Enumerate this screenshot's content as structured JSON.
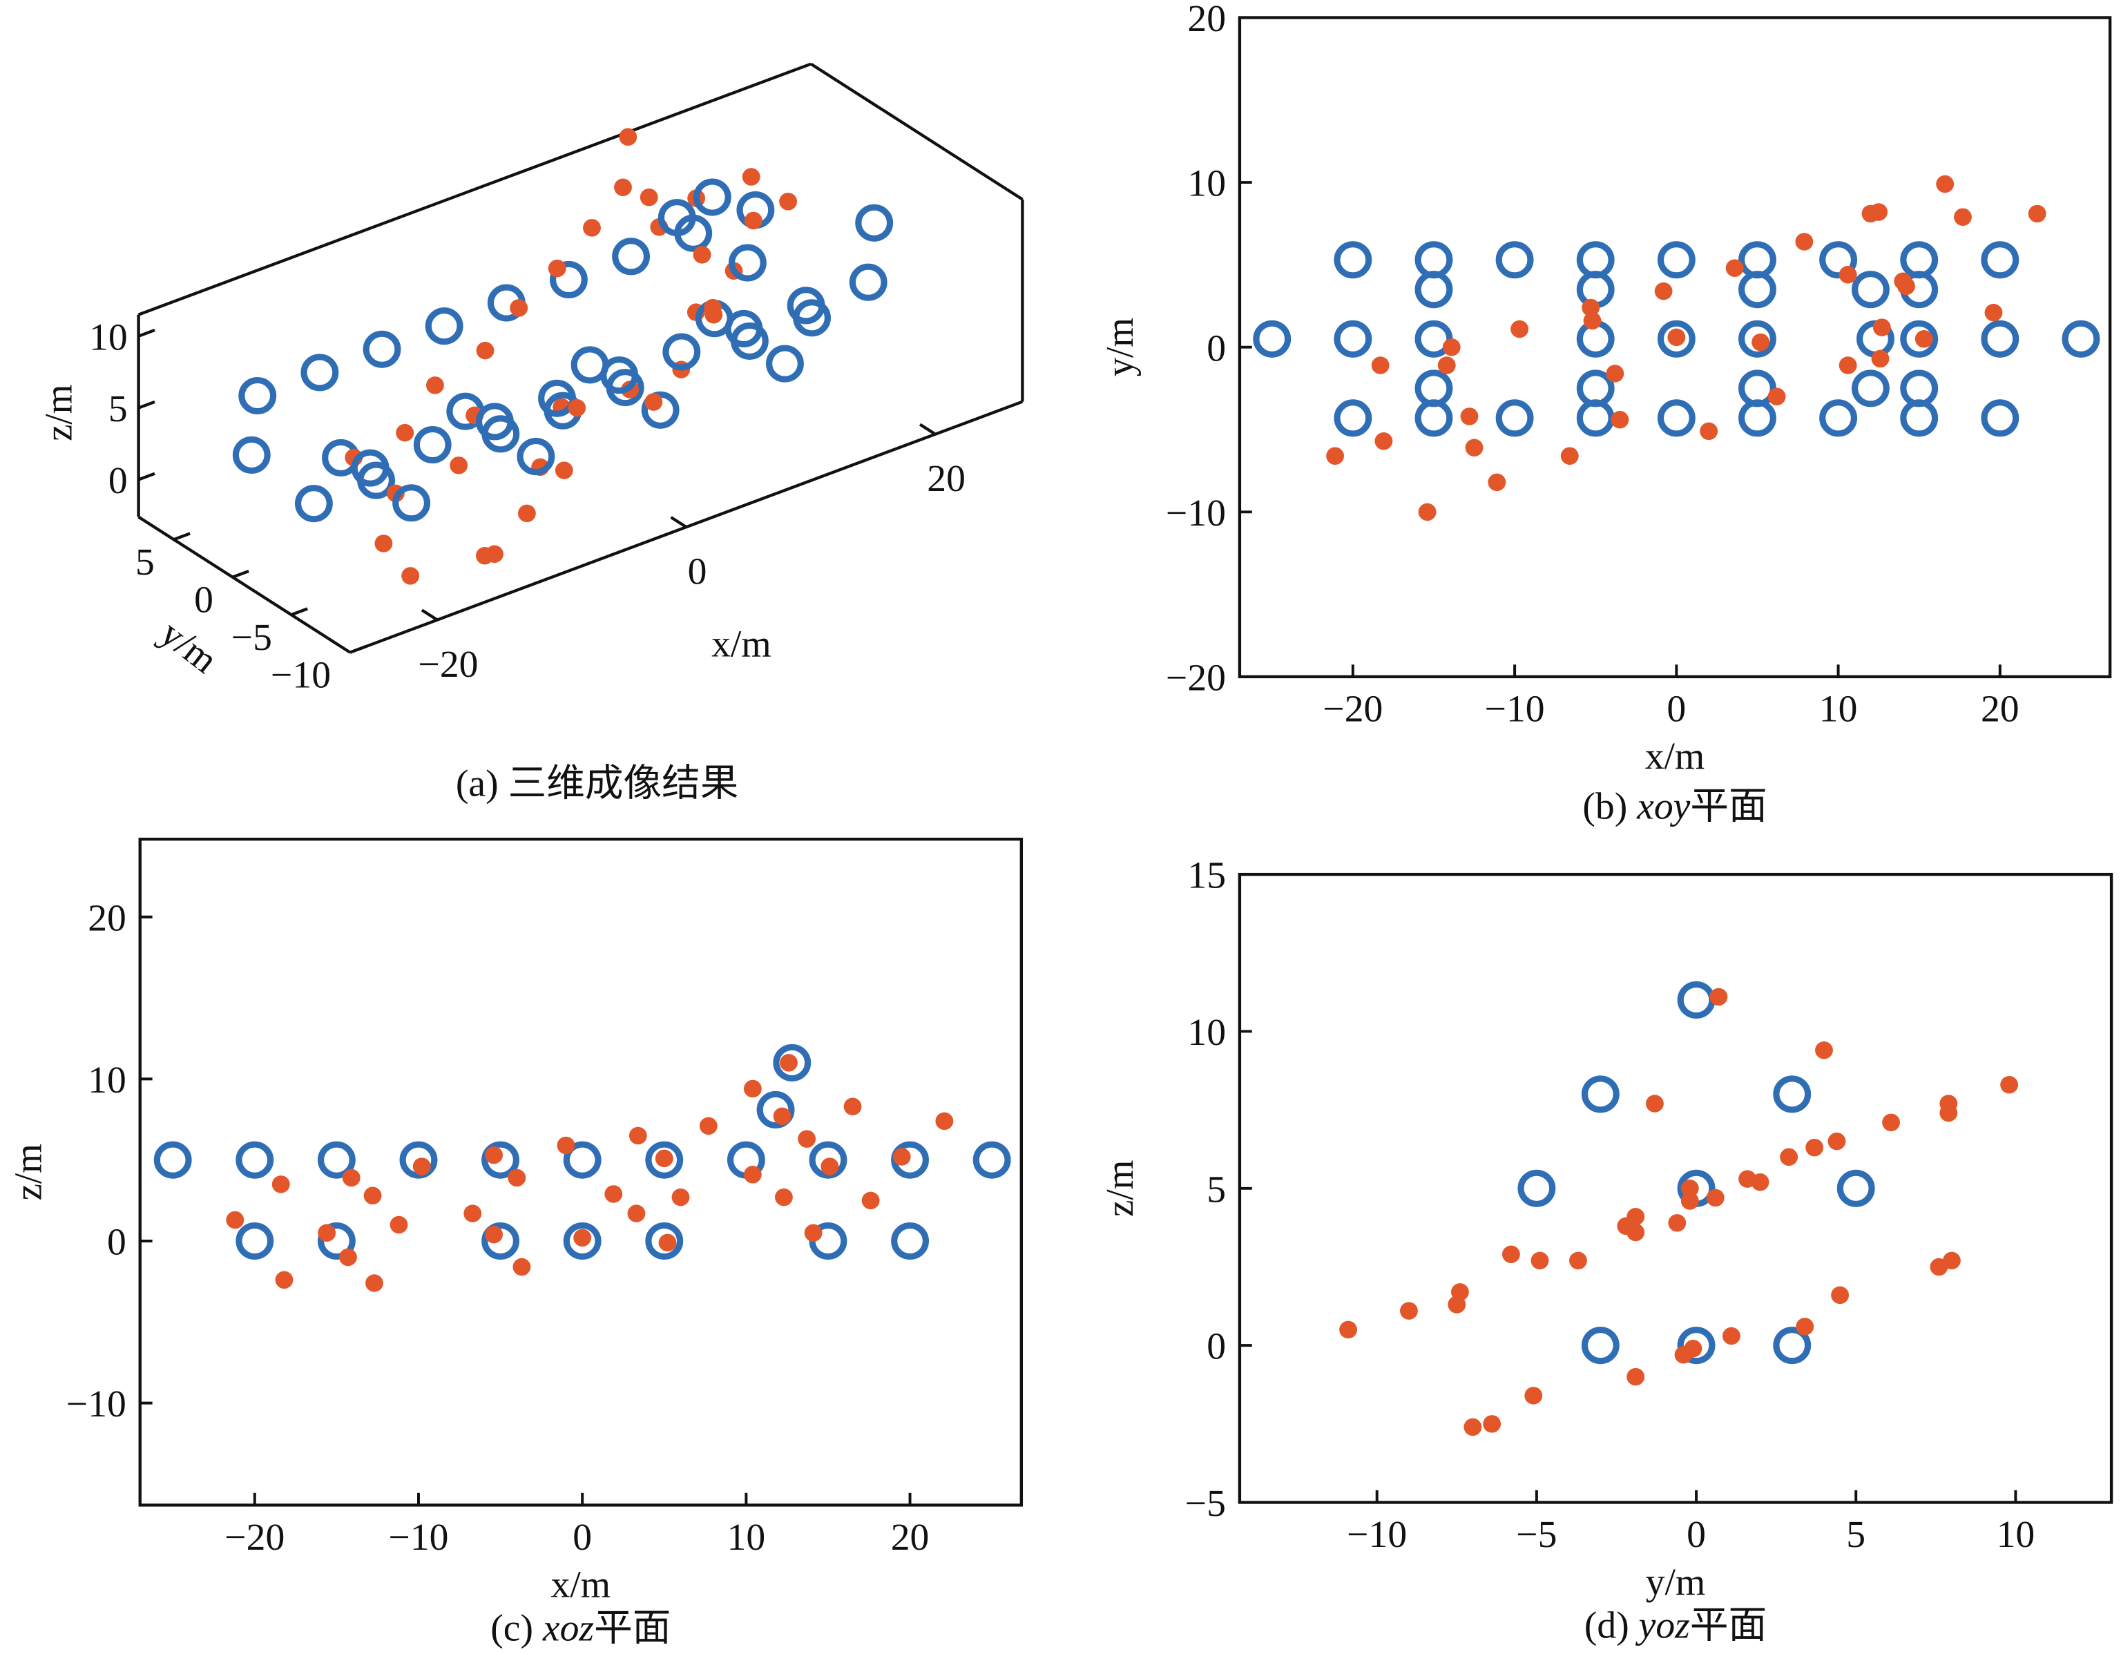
{
  "colors": {
    "target": "#2F6DB5",
    "image": "#E3562A",
    "axis": "#111111"
  },
  "chart_data": [
    {
      "panel": "a",
      "type": "scatter3d",
      "caption": {
        "prefix": "(a) ",
        "italic": "",
        "suffix": "三维成像结果"
      },
      "xlabel": "x/m",
      "ylabel": "y/m",
      "zlabel": "z/m",
      "xticks": [
        -20,
        0,
        20
      ],
      "yticks": [
        -10,
        -5,
        0,
        5
      ],
      "zticks": [
        0,
        5,
        10
      ],
      "xlim": [
        -27,
        27
      ],
      "ylim": [
        -10,
        8
      ],
      "zlim": [
        -2.6,
        11.5
      ],
      "targets": [
        [
          -20,
          5.3,
          5
        ],
        [
          -15,
          5.3,
          5
        ],
        [
          -10,
          5.3,
          5
        ],
        [
          -5,
          5.3,
          5
        ],
        [
          0,
          5.3,
          5
        ],
        [
          5,
          5.3,
          5
        ],
        [
          10,
          5.3,
          5
        ],
        [
          15,
          5.3,
          5
        ],
        [
          20,
          5.3,
          5
        ],
        [
          -20,
          -4.3,
          5
        ],
        [
          -15,
          -4.3,
          5
        ],
        [
          -10,
          -4.3,
          5
        ],
        [
          -5,
          -4.3,
          5
        ],
        [
          0,
          -4.3,
          5
        ],
        [
          5,
          -4.3,
          5
        ],
        [
          10,
          -4.3,
          5
        ],
        [
          15,
          -4.3,
          5
        ],
        [
          20,
          -4.3,
          5
        ],
        [
          -25,
          0.5,
          5
        ],
        [
          25,
          0.5,
          5
        ],
        [
          -20,
          0.5,
          0
        ],
        [
          -15,
          0.5,
          0
        ],
        [
          -5,
          0.5,
          0
        ],
        [
          0,
          0.5,
          0
        ],
        [
          5,
          0.5,
          0
        ],
        [
          15,
          0.5,
          0
        ],
        [
          20,
          0.5,
          0
        ],
        [
          12,
          0.5,
          11
        ],
        [
          -15,
          3.5,
          0
        ],
        [
          -5,
          3.5,
          0
        ],
        [
          5,
          3.5,
          0
        ],
        [
          15,
          3.5,
          0
        ],
        [
          12,
          3.5,
          8
        ],
        [
          -15,
          -2.5,
          0
        ],
        [
          -5,
          -2.5,
          0
        ],
        [
          5,
          -2.5,
          0
        ],
        [
          15,
          -2.5,
          0
        ],
        [
          12,
          -2.5,
          8
        ]
      ],
      "imaging_source": "merged from xoy and xoz panels"
    },
    {
      "panel": "b",
      "type": "scatter",
      "caption": {
        "prefix": "(b) ",
        "italic": "xoy",
        "suffix": "平面"
      },
      "xlabel": "x/m",
      "ylabel": "y/m",
      "xlim": [
        -27,
        26.8
      ],
      "ylim": [
        -20,
        20
      ],
      "xticks": [
        -20,
        -10,
        0,
        10,
        20
      ],
      "yticks": [
        -20,
        -10,
        0,
        10,
        20
      ],
      "targets": [
        [
          -20,
          5.3
        ],
        [
          -15,
          5.3
        ],
        [
          -10,
          5.3
        ],
        [
          -5,
          5.3
        ],
        [
          0,
          5.3
        ],
        [
          5,
          5.3
        ],
        [
          10,
          5.3
        ],
        [
          15,
          5.3
        ],
        [
          20,
          5.3
        ],
        [
          -15,
          3.5
        ],
        [
          -5,
          3.5
        ],
        [
          5,
          3.5
        ],
        [
          12,
          3.5
        ],
        [
          15,
          3.5
        ],
        [
          -25,
          0.5
        ],
        [
          -20,
          0.5
        ],
        [
          -15,
          0.5
        ],
        [
          -5,
          0.5
        ],
        [
          0,
          0.5
        ],
        [
          5,
          0.5
        ],
        [
          12.3,
          0.5
        ],
        [
          15,
          0.5
        ],
        [
          20,
          0.5
        ],
        [
          25,
          0.5
        ],
        [
          -15,
          -2.5
        ],
        [
          -5,
          -2.5
        ],
        [
          5,
          -2.5
        ],
        [
          12,
          -2.5
        ],
        [
          15,
          -2.5
        ],
        [
          -20,
          -4.3
        ],
        [
          -15,
          -4.3
        ],
        [
          -10,
          -4.3
        ],
        [
          -5,
          -4.3
        ],
        [
          0,
          -4.3
        ],
        [
          5,
          -4.3
        ],
        [
          10,
          -4.3
        ],
        [
          15,
          -4.3
        ],
        [
          20,
          -4.3
        ]
      ],
      "imaging": [
        [
          -21.1,
          -6.6
        ],
        [
          -18.3,
          -1.1
        ],
        [
          -18.1,
          -5.7
        ],
        [
          -15.4,
          -10
        ],
        [
          -14.2,
          -1.1
        ],
        [
          -13.9,
          0
        ],
        [
          -12.8,
          -4.2
        ],
        [
          -12.5,
          -6.1
        ],
        [
          -11.1,
          -8.2
        ],
        [
          -9.7,
          1.1
        ],
        [
          -6.6,
          -6.6
        ],
        [
          -5.3,
          2.4
        ],
        [
          -5.2,
          1.6
        ],
        [
          -3.8,
          -1.6
        ],
        [
          -3.5,
          -4.4
        ],
        [
          -0.8,
          3.4
        ],
        [
          0,
          0.6
        ],
        [
          2,
          -5.1
        ],
        [
          3.6,
          4.8
        ],
        [
          5.2,
          0.3
        ],
        [
          6.2,
          -3
        ],
        [
          7.9,
          6.4
        ],
        [
          10.6,
          4.4
        ],
        [
          10.6,
          -1.1
        ],
        [
          12,
          8.1
        ],
        [
          12.5,
          8.2
        ],
        [
          12.7,
          1.2
        ],
        [
          12.6,
          -0.7
        ],
        [
          14,
          4
        ],
        [
          14.2,
          3.7
        ],
        [
          15.3,
          0.5
        ],
        [
          16.6,
          9.9
        ],
        [
          17.7,
          7.9
        ],
        [
          19.6,
          2.1
        ],
        [
          22.3,
          8.1
        ]
      ]
    },
    {
      "panel": "c",
      "type": "scatter",
      "caption": {
        "prefix": "(c) ",
        "italic": "xoz",
        "suffix": "平面"
      },
      "xlabel": "x/m",
      "ylabel": "z/m",
      "xlim": [
        -27,
        26.8
      ],
      "ylim": [
        -16.3,
        24.8
      ],
      "xticks": [
        -20,
        -10,
        0,
        10,
        20
      ],
      "yticks": [
        -10,
        0,
        10,
        20
      ],
      "targets": [
        [
          -25,
          5
        ],
        [
          -20,
          5
        ],
        [
          -15,
          5
        ],
        [
          -10,
          5
        ],
        [
          -5,
          5
        ],
        [
          0,
          5
        ],
        [
          5,
          5
        ],
        [
          10,
          5
        ],
        [
          15,
          5
        ],
        [
          20,
          5
        ],
        [
          25,
          5
        ],
        [
          -20,
          0
        ],
        [
          -15,
          0
        ],
        [
          -5,
          0
        ],
        [
          0,
          0
        ],
        [
          5,
          0
        ],
        [
          15,
          0
        ],
        [
          20,
          0
        ],
        [
          11.8,
          8.1
        ],
        [
          12.8,
          11
        ]
      ],
      "imaging": [
        [
          -21.2,
          1.3
        ],
        [
          -18.4,
          3.5
        ],
        [
          -18.2,
          -2.4
        ],
        [
          -15.6,
          0.5
        ],
        [
          -14.3,
          -1
        ],
        [
          -14.1,
          3.9
        ],
        [
          -12.8,
          2.8
        ],
        [
          -12.7,
          -2.6
        ],
        [
          -11.2,
          1
        ],
        [
          -9.8,
          4.6
        ],
        [
          -6.7,
          1.7
        ],
        [
          -5.4,
          0.4
        ],
        [
          -5.4,
          5.3
        ],
        [
          -4,
          3.9
        ],
        [
          -3.7,
          -1.6
        ],
        [
          -1,
          5.9
        ],
        [
          0,
          0.2
        ],
        [
          1.9,
          2.9
        ],
        [
          3.4,
          6.5
        ],
        [
          3.3,
          1.7
        ],
        [
          5,
          5.1
        ],
        [
          5.2,
          -0.1
        ],
        [
          6,
          2.7
        ],
        [
          7.7,
          7.1
        ],
        [
          10.4,
          9.4
        ],
        [
          10.4,
          4.1
        ],
        [
          12.2,
          7.7
        ],
        [
          12.6,
          11
        ],
        [
          12.3,
          2.7
        ],
        [
          13.7,
          6.3
        ],
        [
          14.1,
          0.5
        ],
        [
          15.1,
          4.6
        ],
        [
          16.5,
          8.3
        ],
        [
          17.6,
          2.5
        ],
        [
          19.5,
          5.2
        ],
        [
          22.1,
          7.4
        ]
      ]
    },
    {
      "panel": "d",
      "type": "scatter",
      "caption": {
        "prefix": "(d) ",
        "italic": "yoz",
        "suffix": "平面"
      },
      "xlabel": "y/m",
      "ylabel": "z/m",
      "xlim": [
        -14.3,
        13
      ],
      "ylim": [
        -5,
        15
      ],
      "xticks": [
        -10,
        -5,
        0,
        5,
        10
      ],
      "yticks": [
        -5,
        0,
        5,
        10,
        15
      ],
      "targets": [
        [
          0,
          11
        ],
        [
          -3,
          8
        ],
        [
          3,
          8
        ],
        [
          -5,
          5
        ],
        [
          0,
          5
        ],
        [
          5,
          5
        ],
        [
          -3,
          0
        ],
        [
          0,
          0
        ],
        [
          3,
          0
        ]
      ],
      "imaging": [
        [
          -10.9,
          0.5
        ],
        [
          -9,
          1.1
        ],
        [
          -7.4,
          1.7
        ],
        [
          -7.5,
          1.3
        ],
        [
          -7,
          -2.6
        ],
        [
          -6.4,
          -2.5
        ],
        [
          -5.8,
          2.9
        ],
        [
          -5.1,
          -1.6
        ],
        [
          -4.9,
          2.7
        ],
        [
          -3.7,
          2.7
        ],
        [
          -1.9,
          -1
        ],
        [
          -1.9,
          4.1
        ],
        [
          -2.2,
          3.8
        ],
        [
          -1.9,
          3.6
        ],
        [
          -1.3,
          7.7
        ],
        [
          -0.6,
          3.9
        ],
        [
          -0.4,
          -0.3
        ],
        [
          -0.1,
          -0.1
        ],
        [
          -0.2,
          5
        ],
        [
          -0.2,
          4.6
        ],
        [
          0.6,
          4.7
        ],
        [
          0.7,
          11.1
        ],
        [
          1.1,
          0.3
        ],
        [
          1.6,
          5.3
        ],
        [
          2,
          5.2
        ],
        [
          2.9,
          6
        ],
        [
          3.4,
          0.6
        ],
        [
          3.7,
          6.3
        ],
        [
          4,
          9.4
        ],
        [
          4.4,
          6.5
        ],
        [
          4.5,
          1.6
        ],
        [
          6.1,
          7.1
        ],
        [
          7.6,
          2.5
        ],
        [
          8,
          2.7
        ],
        [
          7.9,
          7.7
        ],
        [
          7.9,
          7.4
        ],
        [
          9.8,
          8.3
        ]
      ]
    }
  ]
}
